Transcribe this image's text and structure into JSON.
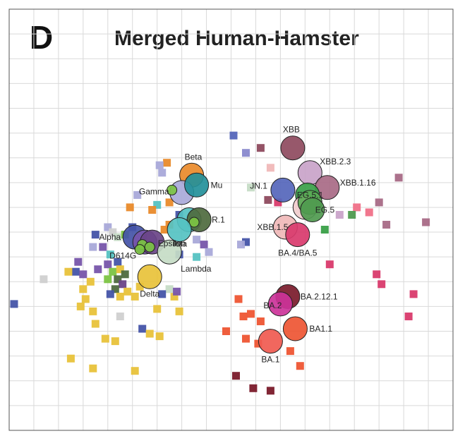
{
  "panel_letter": "D",
  "chart_data": {
    "type": "scatter",
    "title": "Merged Human-Hamster",
    "grid": true,
    "xlabel": "",
    "ylabel": "",
    "grid_columns": 18,
    "grid_rows": 17,
    "antigen_circles": [
      {
        "label": "XBB",
        "x": 11.5,
        "y": 5.6,
        "color": "#8e4a5e"
      },
      {
        "label": "XBB.2.3",
        "x": 12.2,
        "y": 6.6,
        "color": "#c9a3c9"
      },
      {
        "label": "XBB.1.16",
        "x": 12.9,
        "y": 7.2,
        "color": "#a86a86"
      },
      {
        "label": "JN.1",
        "x": 11.1,
        "y": 7.3,
        "color": "#5566bb"
      },
      {
        "label": "EG.5.1",
        "x": 12.1,
        "y": 7.5,
        "color": "#3aa048"
      },
      {
        "label": "",
        "x": 12.0,
        "y": 8.0,
        "color": "#f0cccc"
      },
      {
        "label": "",
        "x": 12.2,
        "y": 7.8,
        "color": "#5aaa55"
      },
      {
        "label": "EG.5",
        "x": 12.3,
        "y": 8.1,
        "color": "#4f9a4f"
      },
      {
        "label": "XBB.1.5",
        "x": 11.2,
        "y": 8.8,
        "color": "#f0b8b8"
      },
      {
        "label": "BA.4/BA.5",
        "x": 11.7,
        "y": 9.1,
        "color": "#d93a6c"
      },
      {
        "label": "Beta",
        "x": 7.4,
        "y": 6.7,
        "color": "#e98a2a"
      },
      {
        "label": "",
        "x": 7.0,
        "y": 7.4,
        "color": "#a9a9d9"
      },
      {
        "label": "Mu",
        "x": 7.6,
        "y": 7.1,
        "color": "#23909a"
      },
      {
        "label": "Gamma",
        "x": 6.6,
        "y": 7.3,
        "color": "#7cc443"
      },
      {
        "label": "",
        "x": 7.3,
        "y": 8.5,
        "color": "#55c2c2"
      },
      {
        "label": "R.1",
        "x": 7.7,
        "y": 8.5,
        "color": "#4e6a3e"
      },
      {
        "label": "",
        "x": 7.5,
        "y": 8.6,
        "color": "#7cc443"
      },
      {
        "label": "Iota",
        "x": 6.9,
        "y": 8.9,
        "color": "#55c2c2"
      },
      {
        "label": "Alpha",
        "x": 5.1,
        "y": 9.2,
        "color": "#4454a8"
      },
      {
        "label": "",
        "x": 5.5,
        "y": 9.4,
        "color": "#7755aa"
      },
      {
        "label": "Epsilon",
        "x": 5.8,
        "y": 9.4,
        "color": "#6a4488"
      },
      {
        "label": "",
        "x": 5.4,
        "y": 9.5,
        "color": "#7cc443"
      },
      {
        "label": "",
        "x": 5.7,
        "y": 9.6,
        "color": "#7cc443"
      },
      {
        "label": "D614G",
        "x": 5.3,
        "y": 9.7,
        "color": "#7cc443"
      },
      {
        "label": "Lambda",
        "x": 6.5,
        "y": 9.8,
        "color": "#c6dcc6"
      },
      {
        "label": "Delta",
        "x": 5.7,
        "y": 10.8,
        "color": "#e8c23a"
      },
      {
        "label": "BA.2.12.1",
        "x": 11.3,
        "y": 11.6,
        "color": "#7a1a2a"
      },
      {
        "label": "BA.2",
        "x": 11.0,
        "y": 11.9,
        "color": "#cc3399"
      },
      {
        "label": "BA1.1",
        "x": 11.6,
        "y": 12.9,
        "color": "#ee5533"
      },
      {
        "label": "BA.1",
        "x": 10.6,
        "y": 13.4,
        "color": "#f05a50"
      }
    ],
    "sera_squares": [
      {
        "x": 9.1,
        "y": 5.1,
        "color": "#5566bb"
      },
      {
        "x": 10.2,
        "y": 5.6,
        "color": "#8e4a5e"
      },
      {
        "x": 9.6,
        "y": 5.8,
        "color": "#8888cc"
      },
      {
        "x": 10.6,
        "y": 6.4,
        "color": "#f0b8b8"
      },
      {
        "x": 15.8,
        "y": 6.8,
        "color": "#a86a86"
      },
      {
        "x": 9.8,
        "y": 7.2,
        "color": "#c6dcc6"
      },
      {
        "x": 10.5,
        "y": 7.7,
        "color": "#8e4a5e"
      },
      {
        "x": 10.9,
        "y": 7.8,
        "color": "#d93a6c"
      },
      {
        "x": 15.0,
        "y": 7.8,
        "color": "#a86a86"
      },
      {
        "x": 14.1,
        "y": 8.0,
        "color": "#f07088"
      },
      {
        "x": 14.6,
        "y": 8.2,
        "color": "#f07088"
      },
      {
        "x": 13.4,
        "y": 8.3,
        "color": "#c9a3c9"
      },
      {
        "x": 13.9,
        "y": 8.3,
        "color": "#4f9a4f"
      },
      {
        "x": 15.3,
        "y": 8.7,
        "color": "#a86a86"
      },
      {
        "x": 16.9,
        "y": 8.6,
        "color": "#a86a86"
      },
      {
        "x": 12.8,
        "y": 8.9,
        "color": "#3aa048"
      },
      {
        "x": 9.6,
        "y": 9.4,
        "color": "#4454a8"
      },
      {
        "x": 9.4,
        "y": 9.5,
        "color": "#a9a9d9"
      },
      {
        "x": 13.0,
        "y": 10.3,
        "color": "#d93a6c"
      },
      {
        "x": 14.9,
        "y": 10.7,
        "color": "#d93a6c"
      },
      {
        "x": 15.1,
        "y": 11.1,
        "color": "#d93a6c"
      },
      {
        "x": 16.4,
        "y": 11.5,
        "color": "#d93a6c"
      },
      {
        "x": 16.2,
        "y": 12.4,
        "color": "#d93a6c"
      },
      {
        "x": 9.3,
        "y": 11.7,
        "color": "#ee5533"
      },
      {
        "x": 9.5,
        "y": 12.4,
        "color": "#ee5533"
      },
      {
        "x": 9.8,
        "y": 12.3,
        "color": "#ee5533"
      },
      {
        "x": 10.2,
        "y": 12.6,
        "color": "#ee5533"
      },
      {
        "x": 8.8,
        "y": 13.0,
        "color": "#ee5533"
      },
      {
        "x": 9.6,
        "y": 13.3,
        "color": "#ee5533"
      },
      {
        "x": 10.1,
        "y": 13.5,
        "color": "#ee5533"
      },
      {
        "x": 11.4,
        "y": 13.8,
        "color": "#ee5533"
      },
      {
        "x": 11.8,
        "y": 14.4,
        "color": "#ee5533"
      },
      {
        "x": 9.2,
        "y": 14.8,
        "color": "#7a1a2a"
      },
      {
        "x": 9.9,
        "y": 15.3,
        "color": "#7a1a2a"
      },
      {
        "x": 10.6,
        "y": 15.4,
        "color": "#7a1a2a"
      },
      {
        "x": 6.4,
        "y": 6.2,
        "color": "#e98a2a"
      },
      {
        "x": 6.1,
        "y": 6.3,
        "color": "#a9a9d9"
      },
      {
        "x": 6.2,
        "y": 6.6,
        "color": "#a9a9d9"
      },
      {
        "x": 5.2,
        "y": 7.5,
        "color": "#a9a9d9"
      },
      {
        "x": 6.5,
        "y": 7.8,
        "color": "#e98a2a"
      },
      {
        "x": 6.0,
        "y": 7.9,
        "color": "#55c2c2"
      },
      {
        "x": 4.9,
        "y": 8.0,
        "color": "#e98a2a"
      },
      {
        "x": 5.8,
        "y": 8.1,
        "color": "#e98a2a"
      },
      {
        "x": 6.9,
        "y": 8.3,
        "color": "#4454a8"
      },
      {
        "x": 6.5,
        "y": 8.7,
        "color": "#e98a2a"
      },
      {
        "x": 6.3,
        "y": 8.9,
        "color": "#e98a2a"
      },
      {
        "x": 4.0,
        "y": 8.8,
        "color": "#a9a9d9"
      },
      {
        "x": 3.5,
        "y": 9.1,
        "color": "#4454a8"
      },
      {
        "x": 4.2,
        "y": 9.0,
        "color": "#d0d0d0"
      },
      {
        "x": 4.4,
        "y": 9.2,
        "color": "#c6dcc6"
      },
      {
        "x": 4.7,
        "y": 9.1,
        "color": "#7cc443"
      },
      {
        "x": 5.0,
        "y": 8.8,
        "color": "#4454a8"
      },
      {
        "x": 7.6,
        "y": 9.3,
        "color": "#a9a9d9"
      },
      {
        "x": 7.9,
        "y": 9.5,
        "color": "#7755aa"
      },
      {
        "x": 8.1,
        "y": 9.8,
        "color": "#a9a9d9"
      },
      {
        "x": 7.6,
        "y": 10.0,
        "color": "#55c2c2"
      },
      {
        "x": 6.9,
        "y": 9.9,
        "color": "#4454a8"
      },
      {
        "x": 3.4,
        "y": 9.6,
        "color": "#a9a9d9"
      },
      {
        "x": 3.8,
        "y": 9.6,
        "color": "#7755aa"
      },
      {
        "x": 4.1,
        "y": 9.9,
        "color": "#55c2c2"
      },
      {
        "x": 4.4,
        "y": 10.2,
        "color": "#4454a8"
      },
      {
        "x": 4.0,
        "y": 10.3,
        "color": "#7755aa"
      },
      {
        "x": 2.8,
        "y": 10.2,
        "color": "#7755aa"
      },
      {
        "x": 2.7,
        "y": 10.6,
        "color": "#4454a8"
      },
      {
        "x": 2.4,
        "y": 10.6,
        "color": "#e8c23a"
      },
      {
        "x": 3.0,
        "y": 10.7,
        "color": "#7755aa"
      },
      {
        "x": 3.6,
        "y": 10.5,
        "color": "#7755aa"
      },
      {
        "x": 4.2,
        "y": 10.6,
        "color": "#7cc443"
      },
      {
        "x": 4.5,
        "y": 10.5,
        "color": "#e8c23a"
      },
      {
        "x": 4.7,
        "y": 10.7,
        "color": "#4e6a3e"
      },
      {
        "x": 4.4,
        "y": 10.9,
        "color": "#4e6a3e"
      },
      {
        "x": 4.6,
        "y": 11.1,
        "color": "#6a4488"
      },
      {
        "x": 4.3,
        "y": 11.3,
        "color": "#4e6a3e"
      },
      {
        "x": 4.1,
        "y": 11.5,
        "color": "#4454a8"
      },
      {
        "x": 4.5,
        "y": 11.6,
        "color": "#e8c23a"
      },
      {
        "x": 4.8,
        "y": 11.4,
        "color": "#e8c23a"
      },
      {
        "x": 5.1,
        "y": 11.6,
        "color": "#e8c23a"
      },
      {
        "x": 5.3,
        "y": 11.2,
        "color": "#e8c23a"
      },
      {
        "x": 4.0,
        "y": 10.9,
        "color": "#7cc443"
      },
      {
        "x": 3.3,
        "y": 11.0,
        "color": "#e8c23a"
      },
      {
        "x": 3.0,
        "y": 11.3,
        "color": "#e8c23a"
      },
      {
        "x": 3.1,
        "y": 11.7,
        "color": "#e8c23a"
      },
      {
        "x": 1.4,
        "y": 10.9,
        "color": "#d0d0d0"
      },
      {
        "x": 0.2,
        "y": 11.9,
        "color": "#4454a8"
      },
      {
        "x": 3.4,
        "y": 12.2,
        "color": "#e8c23a"
      },
      {
        "x": 4.5,
        "y": 12.4,
        "color": "#d0d0d0"
      },
      {
        "x": 3.5,
        "y": 12.7,
        "color": "#e8c23a"
      },
      {
        "x": 3.9,
        "y": 13.3,
        "color": "#e8c23a"
      },
      {
        "x": 4.3,
        "y": 13.4,
        "color": "#e8c23a"
      },
      {
        "x": 5.4,
        "y": 12.9,
        "color": "#4454a8"
      },
      {
        "x": 5.7,
        "y": 13.1,
        "color": "#e8c23a"
      },
      {
        "x": 6.1,
        "y": 13.2,
        "color": "#e8c23a"
      },
      {
        "x": 6.7,
        "y": 11.6,
        "color": "#e8c23a"
      },
      {
        "x": 6.5,
        "y": 11.3,
        "color": "#c6dcc6"
      },
      {
        "x": 6.8,
        "y": 11.4,
        "color": "#7755aa"
      },
      {
        "x": 6.2,
        "y": 11.5,
        "color": "#4454a8"
      },
      {
        "x": 6.9,
        "y": 12.2,
        "color": "#e8c23a"
      },
      {
        "x": 6.0,
        "y": 12.1,
        "color": "#e8c23a"
      },
      {
        "x": 2.5,
        "y": 14.1,
        "color": "#e8c23a"
      },
      {
        "x": 3.4,
        "y": 14.5,
        "color": "#e8c23a"
      },
      {
        "x": 5.1,
        "y": 14.6,
        "color": "#e8c23a"
      },
      {
        "x": 2.9,
        "y": 12.0,
        "color": "#e8c23a"
      }
    ]
  }
}
